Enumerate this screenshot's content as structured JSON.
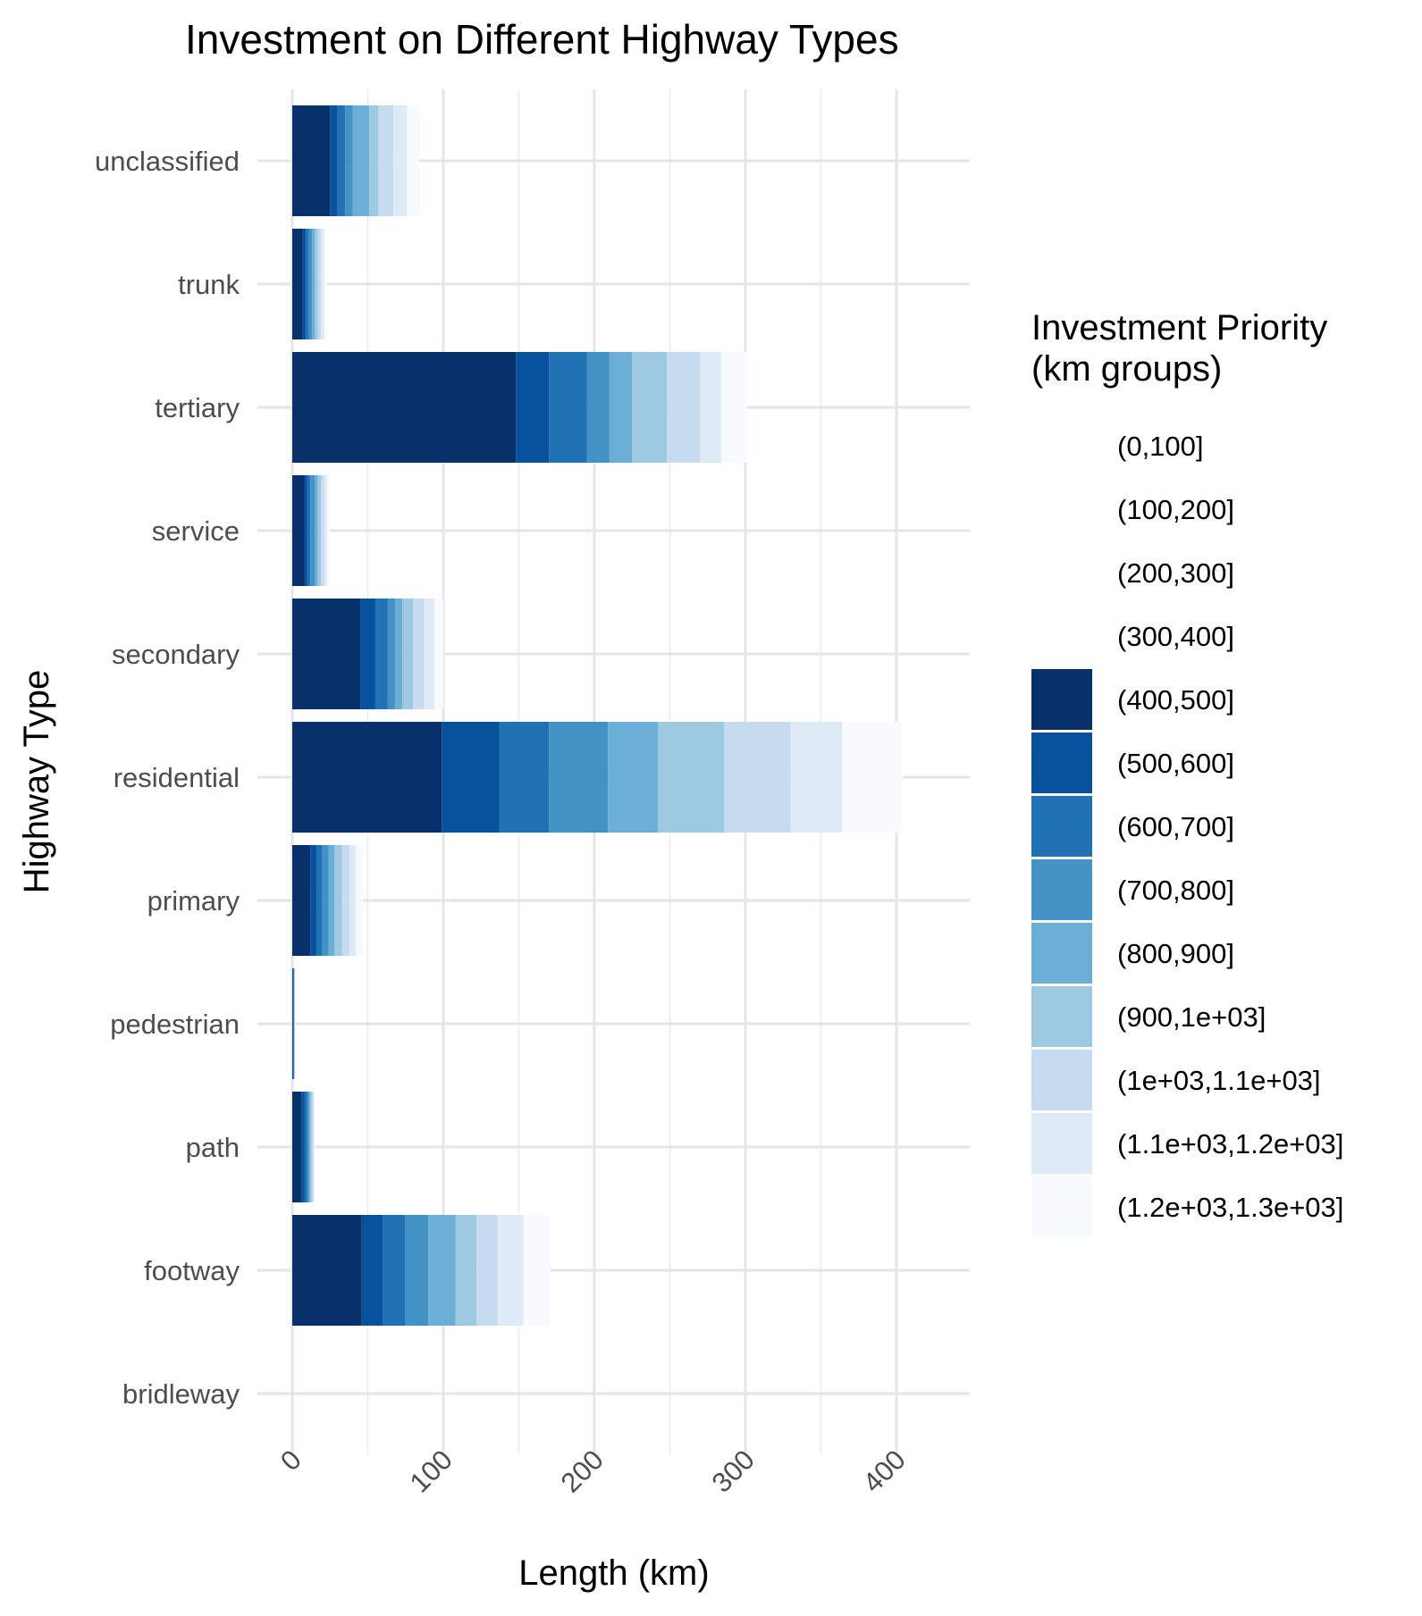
{
  "chart_data": {
    "type": "bar",
    "orientation": "horizontal",
    "stacked": true,
    "title": "Investment on Different Highway Types",
    "xlabel": "Length (km)",
    "ylabel": "Highway Type",
    "xlim": [
      -2,
      450
    ],
    "xticks": [
      0,
      100,
      200,
      300,
      400
    ],
    "xtick_labels": [
      "0",
      "100",
      "200",
      "300",
      "400"
    ],
    "grid": true,
    "legend_position": "right",
    "legend_title": "Investment Priority\n(km groups)",
    "categories": [
      "unclassified",
      "trunk",
      "tertiary",
      "service",
      "secondary",
      "residential",
      "primary",
      "pedestrian",
      "path",
      "footway",
      "bridleway"
    ],
    "series": [
      {
        "name": "(0,100]",
        "color": "#ffffff",
        "values": [
          0,
          0,
          0,
          0,
          0,
          0,
          0,
          0,
          0,
          0,
          0
        ]
      },
      {
        "name": "(100,200]",
        "color": "#ffffff",
        "values": [
          0,
          0,
          0,
          0,
          0,
          0,
          0,
          0,
          0,
          0,
          0
        ]
      },
      {
        "name": "(200,300]",
        "color": "#ffffff",
        "values": [
          0,
          0,
          0,
          0,
          0,
          0,
          0,
          0,
          0,
          0,
          0
        ]
      },
      {
        "name": "(300,400]",
        "color": "#ffffff",
        "values": [
          0,
          0,
          0,
          0,
          0,
          0,
          0,
          0,
          0,
          0,
          0
        ]
      },
      {
        "name": "(400,500]",
        "color": "#08306b",
        "values": [
          25,
          7,
          148,
          8,
          45,
          99,
          12,
          0.5,
          6,
          46,
          0
        ]
      },
      {
        "name": "(500,600]",
        "color": "#08519c",
        "values": [
          5,
          2,
          22,
          2,
          10,
          38,
          4,
          0.2,
          2,
          14,
          0
        ]
      },
      {
        "name": "(600,700]",
        "color": "#2171b5",
        "values": [
          5,
          2,
          25,
          2,
          8,
          33,
          4,
          0.2,
          2,
          15,
          0
        ]
      },
      {
        "name": "(700,800]",
        "color": "#4292c6",
        "values": [
          5,
          2,
          15,
          3,
          5,
          39,
          4,
          0.2,
          1,
          15,
          0
        ]
      },
      {
        "name": "(800,900]",
        "color": "#6baed6",
        "values": [
          11,
          2,
          15,
          2,
          5,
          33,
          4,
          0.2,
          1,
          18,
          0
        ]
      },
      {
        "name": "(900,1e+03]",
        "color": "#9ecae1",
        "values": [
          6,
          2,
          23,
          2,
          7,
          44,
          5,
          0.2,
          1,
          14,
          0
        ]
      },
      {
        "name": "(1e+03,1.1e+03]",
        "color": "#c6dbef",
        "values": [
          10,
          2,
          22,
          2,
          7,
          44,
          5,
          0.2,
          1,
          14,
          0
        ]
      },
      {
        "name": "(1.1e+03,1.2e+03]",
        "color": "#deebf7",
        "values": [
          9,
          2,
          14,
          2,
          7,
          34,
          4,
          0.2,
          0.5,
          17,
          0
        ]
      },
      {
        "name": "(1.2e+03,1.3e+03]",
        "color": "#f7fbff",
        "values": [
          8,
          2,
          17,
          2,
          6,
          40,
          5,
          0.2,
          0.5,
          18,
          0
        ]
      }
    ]
  }
}
